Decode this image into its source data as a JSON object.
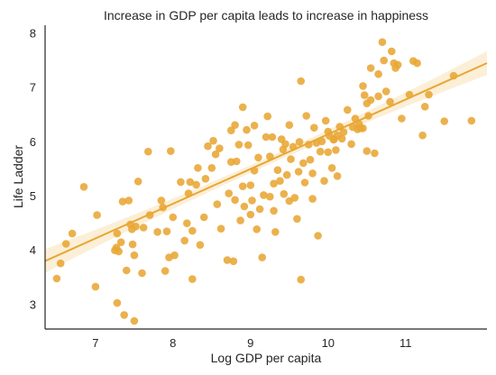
{
  "chart_data": {
    "type": "scatter",
    "title": "Increase in GDP per capita leads to increase in happiness",
    "xlabel": "Log GDP per capita",
    "ylabel": "Life Ladder",
    "xlim": [
      6.35,
      12.05
    ],
    "ylim": [
      2.55,
      8.15
    ],
    "xticks": [
      "7",
      "8",
      "9",
      "10",
      "11"
    ],
    "yticks": [
      "3",
      "4",
      "5",
      "6",
      "7",
      "8"
    ],
    "grid": false,
    "color": "#e8a634",
    "regression": {
      "intercept": -0.26,
      "slope": 0.64,
      "ci_halfwidth_ends": 0.22,
      "ci_halfwidth_mid": 0.07
    },
    "points": [
      [
        6.5,
        3.48
      ],
      [
        6.55,
        3.76
      ],
      [
        6.62,
        4.12
      ],
      [
        6.7,
        4.31
      ],
      [
        6.85,
        5.17
      ],
      [
        7.0,
        3.33
      ],
      [
        7.02,
        4.65
      ],
      [
        7.25,
        4.0
      ],
      [
        7.27,
        4.05
      ],
      [
        7.28,
        4.31
      ],
      [
        7.28,
        3.03
      ],
      [
        7.3,
        3.98
      ],
      [
        7.33,
        4.15
      ],
      [
        7.35,
        4.9
      ],
      [
        7.37,
        2.81
      ],
      [
        7.4,
        3.63
      ],
      [
        7.43,
        4.92
      ],
      [
        7.45,
        4.48
      ],
      [
        7.47,
        4.39
      ],
      [
        7.48,
        4.11
      ],
      [
        7.5,
        2.7
      ],
      [
        7.5,
        3.91
      ],
      [
        7.52,
        4.44
      ],
      [
        7.55,
        5.27
      ],
      [
        7.6,
        3.58
      ],
      [
        7.62,
        4.42
      ],
      [
        7.68,
        5.82
      ],
      [
        7.7,
        4.65
      ],
      [
        7.8,
        4.34
      ],
      [
        7.85,
        4.92
      ],
      [
        7.87,
        4.79
      ],
      [
        7.9,
        3.62
      ],
      [
        7.92,
        4.35
      ],
      [
        7.95,
        3.87
      ],
      [
        7.97,
        5.83
      ],
      [
        8.0,
        4.61
      ],
      [
        8.02,
        3.91
      ],
      [
        8.1,
        5.26
      ],
      [
        8.15,
        4.18
      ],
      [
        8.18,
        4.5
      ],
      [
        8.2,
        5.05
      ],
      [
        8.22,
        5.26
      ],
      [
        8.25,
        3.47
      ],
      [
        8.25,
        4.36
      ],
      [
        8.3,
        5.21
      ],
      [
        8.32,
        5.52
      ],
      [
        8.35,
        4.1
      ],
      [
        8.4,
        4.61
      ],
      [
        8.42,
        5.32
      ],
      [
        8.45,
        5.92
      ],
      [
        8.5,
        5.52
      ],
      [
        8.52,
        6.02
      ],
      [
        8.55,
        5.77
      ],
      [
        8.57,
        4.85
      ],
      [
        8.6,
        5.88
      ],
      [
        8.62,
        4.4
      ],
      [
        8.7,
        3.82
      ],
      [
        8.72,
        5.05
      ],
      [
        8.75,
        5.63
      ],
      [
        8.75,
        6.21
      ],
      [
        8.78,
        3.8
      ],
      [
        8.8,
        4.93
      ],
      [
        8.8,
        6.31
      ],
      [
        8.82,
        5.64
      ],
      [
        8.85,
        5.95
      ],
      [
        8.87,
        4.55
      ],
      [
        8.9,
        6.64
      ],
      [
        8.9,
        5.18
      ],
      [
        8.92,
        4.81
      ],
      [
        8.95,
        6.22
      ],
      [
        8.97,
        5.94
      ],
      [
        9.0,
        4.66
      ],
      [
        9.0,
        5.2
      ],
      [
        9.02,
        4.92
      ],
      [
        9.05,
        6.3
      ],
      [
        9.05,
        5.47
      ],
      [
        9.08,
        4.39
      ],
      [
        9.1,
        5.71
      ],
      [
        9.12,
        4.76
      ],
      [
        9.15,
        3.87
      ],
      [
        9.17,
        5.02
      ],
      [
        9.2,
        6.09
      ],
      [
        9.22,
        6.47
      ],
      [
        9.25,
        5.73
      ],
      [
        9.25,
        4.99
      ],
      [
        9.28,
        6.09
      ],
      [
        9.3,
        4.73
      ],
      [
        9.3,
        5.23
      ],
      [
        9.32,
        4.34
      ],
      [
        9.35,
        5.48
      ],
      [
        9.38,
        5.28
      ],
      [
        9.4,
        6.05
      ],
      [
        9.42,
        5.86
      ],
      [
        9.43,
        5.04
      ],
      [
        9.45,
        5.96
      ],
      [
        9.47,
        5.39
      ],
      [
        9.5,
        4.91
      ],
      [
        9.5,
        6.31
      ],
      [
        9.52,
        5.68
      ],
      [
        9.55,
        5.91
      ],
      [
        9.57,
        4.97
      ],
      [
        9.6,
        4.58
      ],
      [
        9.62,
        5.45
      ],
      [
        9.63,
        6.0
      ],
      [
        9.65,
        3.46
      ],
      [
        9.65,
        7.12
      ],
      [
        9.68,
        5.61
      ],
      [
        9.7,
        5.25
      ],
      [
        9.72,
        6.48
      ],
      [
        9.75,
        5.95
      ],
      [
        9.77,
        5.67
      ],
      [
        9.8,
        5.42
      ],
      [
        9.8,
        4.95
      ],
      [
        9.82,
        6.26
      ],
      [
        9.85,
        5.98
      ],
      [
        9.87,
        4.27
      ],
      [
        9.9,
        5.82
      ],
      [
        9.92,
        6.01
      ],
      [
        9.95,
        5.28
      ],
      [
        9.97,
        6.39
      ],
      [
        10.0,
        5.81
      ],
      [
        10.0,
        6.19
      ],
      [
        10.02,
        6.11
      ],
      [
        10.05,
        5.52
      ],
      [
        10.07,
        6.04
      ],
      [
        10.08,
        6.05
      ],
      [
        10.1,
        5.85
      ],
      [
        10.12,
        6.12
      ],
      [
        10.12,
        5.37
      ],
      [
        10.15,
        6.28
      ],
      [
        10.18,
        6.06
      ],
      [
        10.2,
        6.18
      ],
      [
        10.25,
        6.59
      ],
      [
        10.3,
        5.96
      ],
      [
        10.32,
        6.27
      ],
      [
        10.35,
        6.43
      ],
      [
        10.38,
        6.23
      ],
      [
        10.4,
        6.33
      ],
      [
        10.42,
        6.25
      ],
      [
        10.45,
        6.25
      ],
      [
        10.45,
        7.03
      ],
      [
        10.47,
        6.86
      ],
      [
        10.5,
        6.71
      ],
      [
        10.5,
        5.83
      ],
      [
        10.52,
        6.48
      ],
      [
        10.55,
        7.36
      ],
      [
        10.55,
        6.77
      ],
      [
        10.6,
        5.79
      ],
      [
        10.65,
        6.84
      ],
      [
        10.65,
        7.25
      ],
      [
        10.7,
        7.84
      ],
      [
        10.72,
        7.5
      ],
      [
        10.75,
        6.93
      ],
      [
        10.8,
        6.74
      ],
      [
        10.82,
        7.67
      ],
      [
        10.85,
        7.45
      ],
      [
        10.87,
        7.36
      ],
      [
        10.9,
        7.42
      ],
      [
        10.95,
        6.43
      ],
      [
        11.05,
        6.87
      ],
      [
        11.1,
        7.49
      ],
      [
        11.15,
        7.45
      ],
      [
        11.22,
        6.12
      ],
      [
        11.25,
        6.65
      ],
      [
        11.3,
        6.87
      ],
      [
        11.5,
        6.38
      ],
      [
        11.62,
        7.22
      ],
      [
        11.85,
        6.39
      ]
    ]
  }
}
